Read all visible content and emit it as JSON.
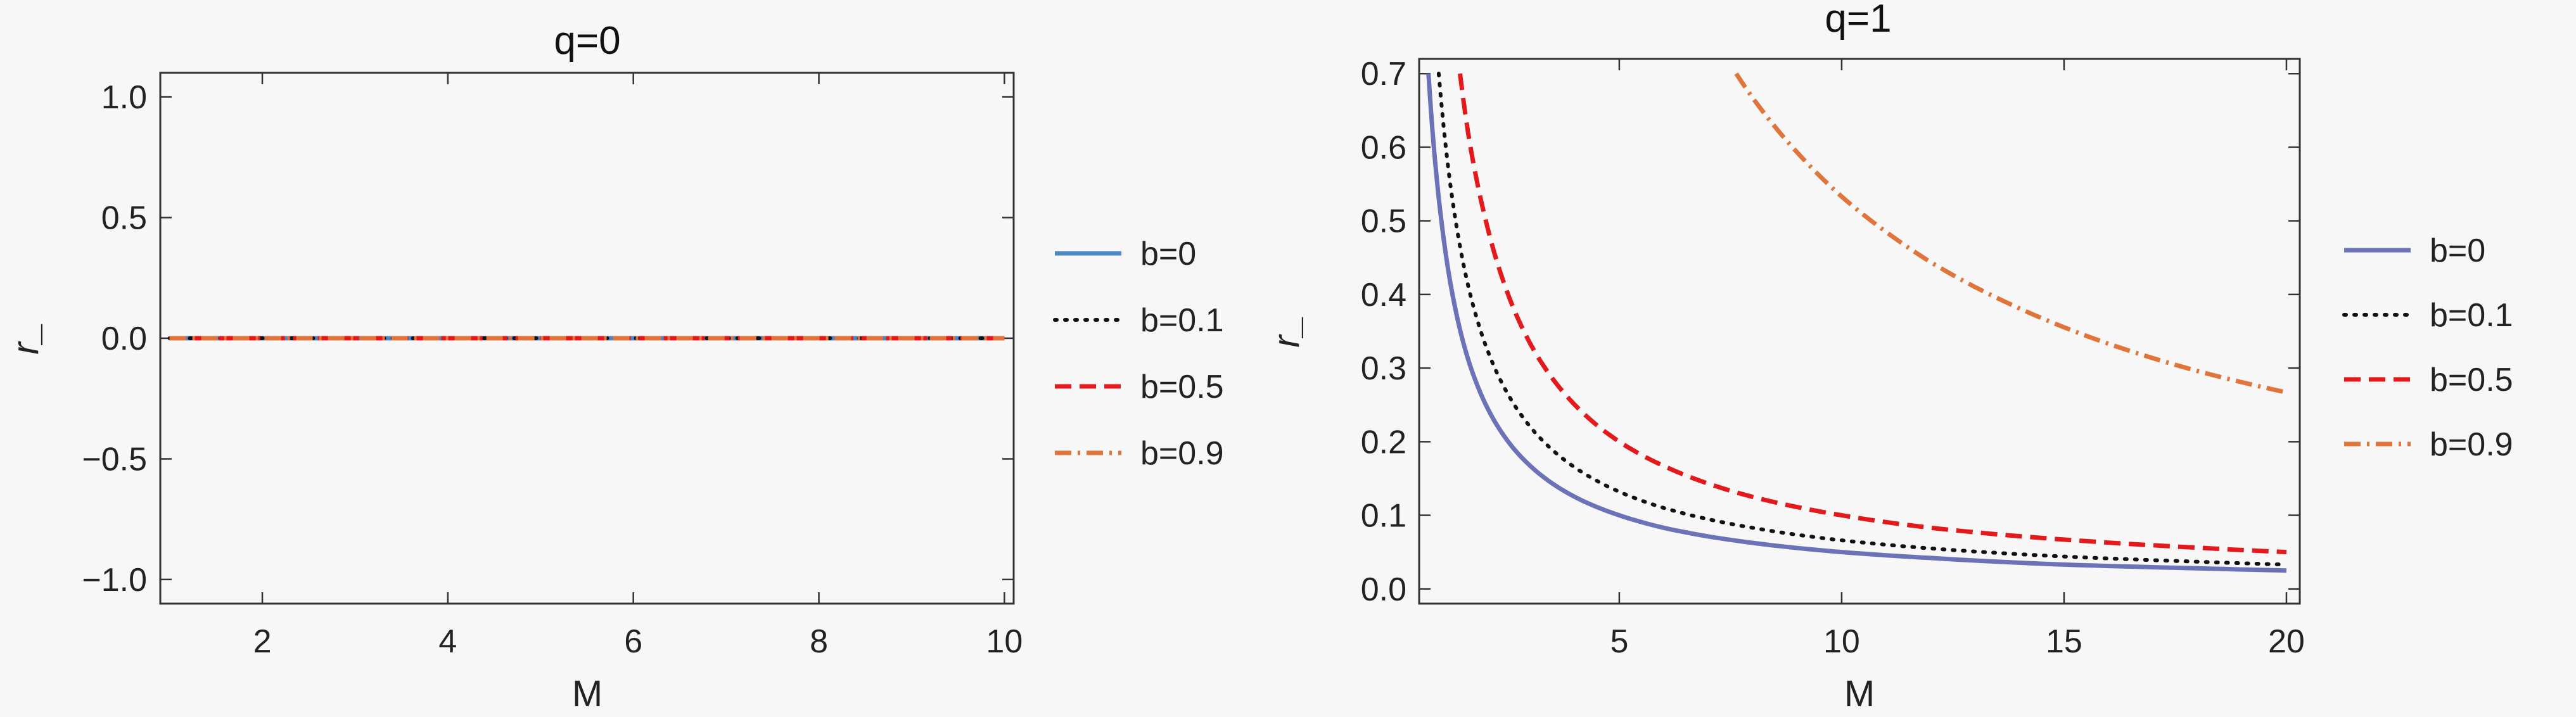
{
  "colors": {
    "background": "#f7f7f7",
    "b0_left": "#4f86c6",
    "b0_right": "#6b72b8",
    "b01": "#111111",
    "b05": "#e4191c",
    "b09": "#e0743a"
  },
  "chart_data": [
    {
      "type": "line",
      "title": "q=0",
      "xlabel": "M",
      "ylabel": "r_",
      "xlim": [
        0.9,
        10.1
      ],
      "ylim": [
        -1.1,
        1.1
      ],
      "xticks": [
        {
          "value": 2,
          "label": "2"
        },
        {
          "value": 4,
          "label": "4"
        },
        {
          "value": 6,
          "label": "6"
        },
        {
          "value": 8,
          "label": "8"
        },
        {
          "value": 10,
          "label": "10"
        }
      ],
      "yticks": [
        {
          "value": -1.0,
          "label": "−1.0"
        },
        {
          "value": -0.5,
          "label": "−0.5"
        },
        {
          "value": 0.0,
          "label": "0.0"
        },
        {
          "value": 0.5,
          "label": "0.5"
        },
        {
          "value": 1.0,
          "label": "1.0"
        }
      ],
      "series": [
        {
          "name": "b=0",
          "style": "solid",
          "color": "#4f86c6",
          "x": [
            1,
            10
          ],
          "y": [
            0,
            0
          ]
        },
        {
          "name": "b=0.1",
          "style": "dotted",
          "color": "#111111",
          "x": [
            1,
            10
          ],
          "y": [
            0,
            0
          ]
        },
        {
          "name": "b=0.5",
          "style": "dashed",
          "color": "#e4191c",
          "x": [
            1,
            10
          ],
          "y": [
            0,
            0
          ]
        },
        {
          "name": "b=0.9",
          "style": "dashdot",
          "color": "#e0743a",
          "x": [
            1,
            10
          ],
          "y": [
            0,
            0
          ]
        }
      ],
      "legend": "right"
    },
    {
      "type": "line",
      "title": "q=1",
      "xlabel": "M",
      "ylabel": "r_",
      "xlim": [
        0.5,
        20.3
      ],
      "ylim": [
        -0.02,
        0.72
      ],
      "xticks": [
        {
          "value": 5,
          "label": "5"
        },
        {
          "value": 10,
          "label": "10"
        },
        {
          "value": 15,
          "label": "15"
        },
        {
          "value": 20,
          "label": "20"
        }
      ],
      "yticks": [
        {
          "value": 0.0,
          "label": "0.0"
        },
        {
          "value": 0.1,
          "label": "0.1"
        },
        {
          "value": 0.2,
          "label": "0.2"
        },
        {
          "value": 0.3,
          "label": "0.3"
        },
        {
          "value": 0.4,
          "label": "0.4"
        },
        {
          "value": 0.5,
          "label": "0.5"
        },
        {
          "value": 0.6,
          "label": "0.6"
        },
        {
          "value": 0.7,
          "label": "0.7"
        }
      ],
      "series": [
        {
          "name": "b=0",
          "style": "solid",
          "color": "#6b72b8",
          "x": [
            0.71,
            1,
            1.5,
            2,
            3,
            4,
            5,
            6,
            8,
            10,
            12,
            15,
            18,
            20
          ],
          "y": [
            0.7,
            0.5,
            0.333,
            0.25,
            0.167,
            0.125,
            0.1,
            0.083,
            0.0625,
            0.05,
            0.042,
            0.033,
            0.028,
            0.025
          ]
        },
        {
          "name": "b=0.1",
          "style": "dotted",
          "color": "#111111",
          "x": [
            0.94,
            1,
            1.5,
            2,
            3,
            4,
            5,
            6,
            8,
            10,
            12,
            15,
            18,
            20
          ],
          "y": [
            0.7,
            0.66,
            0.44,
            0.33,
            0.22,
            0.165,
            0.132,
            0.11,
            0.083,
            0.066,
            0.055,
            0.044,
            0.037,
            0.033
          ]
        },
        {
          "name": "b=0.5",
          "style": "dashed",
          "color": "#e4191c",
          "x": [
            1.42,
            1.6,
            2,
            2.5,
            3,
            4,
            5,
            6,
            8,
            10,
            12,
            15,
            18,
            20
          ],
          "y": [
            0.7,
            0.62,
            0.5,
            0.4,
            0.333,
            0.25,
            0.2,
            0.167,
            0.125,
            0.1,
            0.083,
            0.067,
            0.056,
            0.05
          ]
        },
        {
          "name": "b=0.9",
          "style": "dashdot",
          "color": "#e0743a",
          "x": [
            7.63,
            8,
            9,
            10,
            11,
            12,
            14,
            16,
            18,
            20
          ],
          "y": [
            0.7,
            0.667,
            0.593,
            0.533,
            0.485,
            0.444,
            0.381,
            0.333,
            0.296,
            0.267
          ]
        }
      ],
      "legend": "right"
    }
  ]
}
